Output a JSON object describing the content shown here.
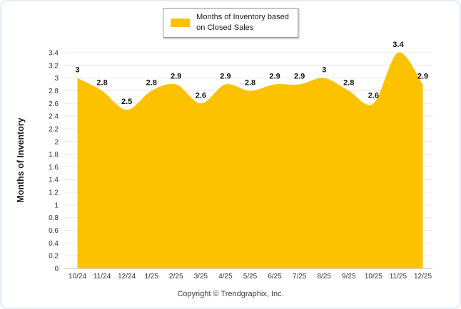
{
  "chart_data": {
    "type": "area",
    "title": "",
    "categories": [
      "10/24",
      "11/24",
      "12/24",
      "1/25",
      "2/25",
      "3/25",
      "4/25",
      "5/25",
      "6/25",
      "7/25",
      "8/25",
      "9/25",
      "10/25",
      "11/25",
      "12/25"
    ],
    "values": [
      3,
      2.8,
      2.5,
      2.8,
      2.9,
      2.6,
      2.9,
      2.8,
      2.9,
      2.9,
      3,
      2.8,
      2.6,
      3.4,
      2.9
    ],
    "xlabel": "",
    "ylabel": "Months of Inventory",
    "ylim": [
      0,
      3.4
    ],
    "ytick_step": 0.2,
    "grid": true,
    "legend_entries": [
      "Months of Inventory based on Closed Sales"
    ],
    "legend_position": "top-center",
    "area_color": "#FCC200",
    "data_label_color": "#111111"
  },
  "legend": {
    "line1": "Months of Inventory based",
    "line2": "on Closed Sales"
  },
  "footer": {
    "copyright": "Copyright © Trendgraphix, Inc."
  }
}
